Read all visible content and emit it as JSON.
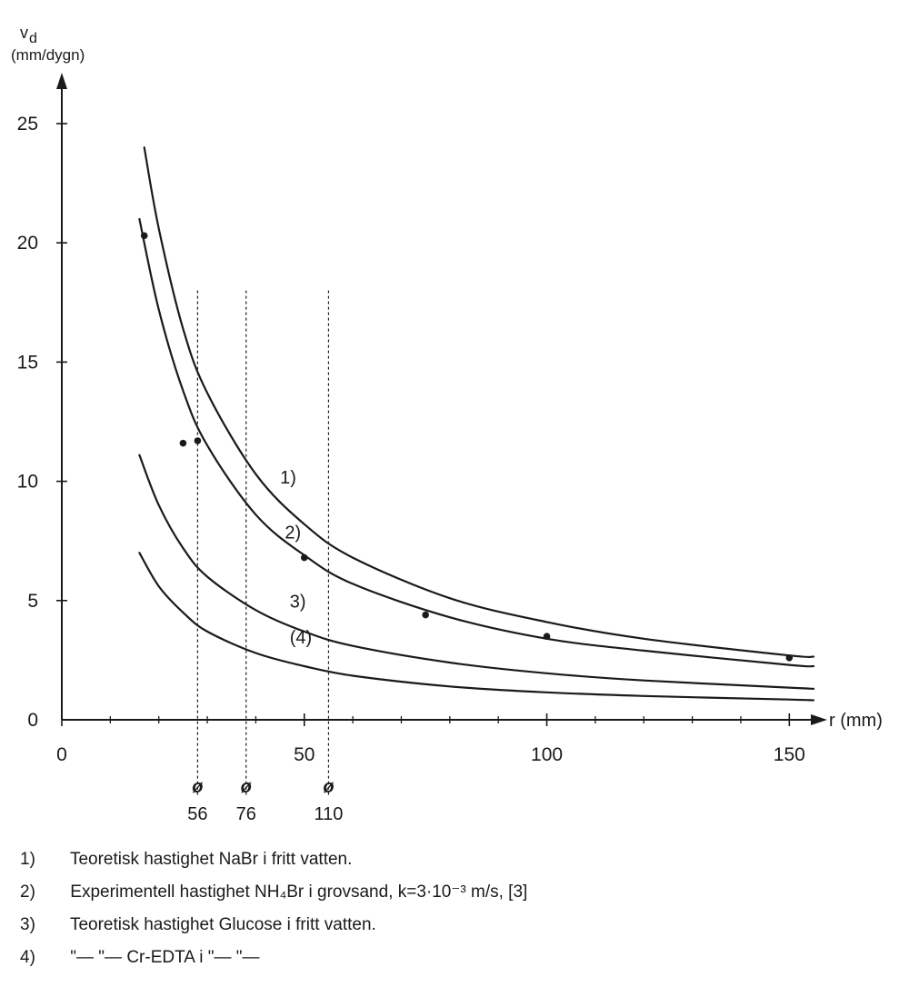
{
  "chart_data": {
    "type": "line",
    "ylabel_symbol": "v",
    "ylabel_subscript": "d",
    "ylabel_unit": "(mm/dygn)",
    "xlabel": "r (mm)",
    "xlim": [
      0,
      155
    ],
    "ylim": [
      0,
      25
    ],
    "x_ticks": [
      0,
      50,
      100,
      150
    ],
    "y_ticks": [
      0,
      5,
      10,
      15,
      20,
      25
    ],
    "grid": false,
    "series": [
      {
        "name": "1)",
        "x": [
          17,
          20,
          25,
          30,
          40,
          50,
          60,
          80,
          100,
          120,
          150,
          155
        ],
        "y": [
          24.0,
          20.6,
          16.4,
          13.7,
          10.3,
          8.2,
          6.8,
          5.1,
          4.1,
          3.4,
          2.7,
          2.65
        ]
      },
      {
        "name": "2)",
        "x": [
          16,
          20,
          25,
          30,
          40,
          50,
          60,
          80,
          100,
          120,
          150,
          155
        ],
        "y": [
          21.0,
          17.2,
          13.8,
          11.5,
          8.6,
          6.9,
          5.7,
          4.3,
          3.4,
          2.9,
          2.3,
          2.25
        ]
      },
      {
        "name": "3)",
        "x": [
          16,
          20,
          25,
          30,
          40,
          50,
          60,
          80,
          100,
          120,
          150,
          155
        ],
        "y": [
          11.1,
          9.0,
          7.2,
          6.0,
          4.6,
          3.7,
          3.1,
          2.4,
          1.95,
          1.65,
          1.35,
          1.3
        ]
      },
      {
        "name": "(4)",
        "x": [
          16,
          20,
          25,
          30,
          40,
          50,
          60,
          80,
          100,
          120,
          150,
          155
        ],
        "y": [
          7.0,
          5.6,
          4.5,
          3.7,
          2.8,
          2.25,
          1.85,
          1.4,
          1.15,
          1.0,
          0.85,
          0.82
        ]
      }
    ],
    "measured_points": [
      {
        "x": 17,
        "y": 20.3
      },
      {
        "x": 25,
        "y": 11.6
      },
      {
        "x": 28,
        "y": 11.7
      },
      {
        "x": 50,
        "y": 6.8
      },
      {
        "x": 75,
        "y": 4.4
      },
      {
        "x": 100,
        "y": 3.5
      },
      {
        "x": 150,
        "y": 2.6
      }
    ],
    "pipe_markers": [
      {
        "symbol": "ø",
        "label": "56",
        "x": 28
      },
      {
        "symbol": "ø",
        "label": "76",
        "x": 38
      },
      {
        "symbol": "ø",
        "label": "110",
        "x": 55
      }
    ],
    "pipe_line_top_y": 18.0,
    "label_positions": [
      {
        "text": "1)",
        "x": 45,
        "y": 9.9
      },
      {
        "text": "2)",
        "x": 46,
        "y": 7.6
      },
      {
        "text": "3)",
        "x": 47,
        "y": 4.7
      },
      {
        "text": "(4)",
        "x": 47,
        "y": 3.2
      }
    ]
  },
  "legend": [
    {
      "num": "1)",
      "text": "Teoretisk hastighet NaBr i fritt vatten."
    },
    {
      "num": "2)",
      "text": "Experimentell hastighet NH₄Br i grovsand, k=3·10⁻³ m/s, [3]"
    },
    {
      "num": "3)",
      "text": "Teoretisk hastighet Glucose i fritt vatten."
    },
    {
      "num": "4)",
      "text": "\"—  \"—  Cr-EDTA i \"—  \"—"
    }
  ]
}
